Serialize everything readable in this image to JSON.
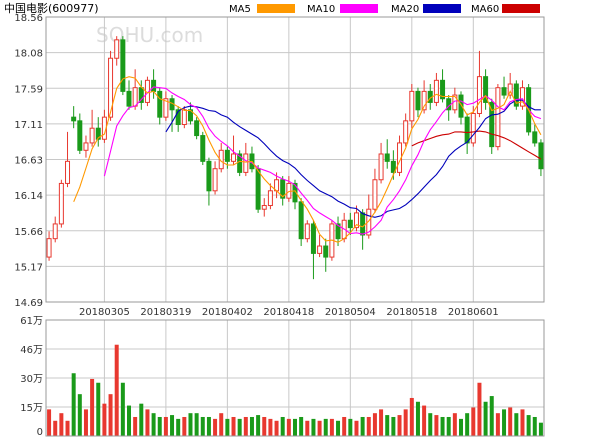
{
  "header": {
    "stock_title": "中国电影(600977)",
    "watermark": "SOHU.com"
  },
  "colors": {
    "up": "#e8382f",
    "down": "#1a9a1a",
    "ma5": "#ff9900",
    "ma10": "#ff00ff",
    "ma20": "#0000bb",
    "ma60": "#cc0000",
    "grid": "#c8c8c8",
    "frame": "#999999"
  },
  "chart_data": [
    {
      "type": "candlestick",
      "title": "中国电影(600977)",
      "ylim": [
        14.69,
        18.56
      ],
      "y_ticks": [
        "18.56",
        "18.08",
        "17.59",
        "17.11",
        "16.63",
        "16.14",
        "15.66",
        "15.17",
        "14.69"
      ],
      "x_tick_labels": [
        "20180305",
        "20180319",
        "20180402",
        "20180418",
        "20180504",
        "20180518",
        "20180601"
      ],
      "x_tick_index": [
        9,
        19,
        29,
        39,
        49,
        59,
        69
      ],
      "legend": [
        {
          "name": "MA5",
          "color": "#ff9900"
        },
        {
          "name": "MA10",
          "color": "#ff00ff"
        },
        {
          "name": "MA20",
          "color": "#0000bb"
        },
        {
          "name": "MA60",
          "color": "#cc0000"
        }
      ],
      "candles": [
        [
          15.3,
          15.55,
          15.65,
          15.25
        ],
        [
          15.55,
          15.75,
          15.85,
          15.5
        ],
        [
          15.75,
          16.3,
          16.35,
          15.7
        ],
        [
          16.3,
          16.6,
          17.0,
          16.25
        ],
        [
          17.2,
          17.15,
          17.35,
          17.05
        ],
        [
          17.15,
          16.75,
          17.25,
          16.7
        ],
        [
          16.75,
          16.85,
          16.95,
          16.65
        ],
        [
          16.85,
          17.05,
          17.3,
          16.8
        ],
        [
          17.05,
          16.9,
          17.2,
          16.8
        ],
        [
          16.9,
          17.2,
          17.3,
          16.85
        ],
        [
          17.2,
          18.0,
          18.1,
          17.15
        ],
        [
          18.0,
          18.25,
          18.3,
          17.9
        ],
        [
          18.25,
          17.55,
          18.3,
          17.5
        ],
        [
          17.55,
          17.35,
          17.7,
          17.3
        ],
        [
          17.35,
          17.6,
          17.85,
          17.3
        ],
        [
          17.6,
          17.4,
          17.7,
          17.3
        ],
        [
          17.4,
          17.7,
          17.75,
          17.35
        ],
        [
          17.7,
          17.55,
          17.85,
          17.45
        ],
        [
          17.55,
          17.2,
          17.6,
          17.1
        ],
        [
          17.2,
          17.45,
          17.55,
          17.15
        ],
        [
          17.45,
          17.3,
          17.5,
          17.0
        ],
        [
          17.3,
          17.1,
          17.35,
          17.0
        ],
        [
          17.1,
          17.3,
          17.35,
          17.05
        ],
        [
          17.3,
          17.15,
          17.4,
          17.1
        ],
        [
          17.15,
          16.95,
          17.2,
          16.9
        ],
        [
          16.95,
          16.6,
          17.0,
          16.55
        ],
        [
          16.6,
          16.2,
          16.65,
          16.0
        ],
        [
          16.2,
          16.5,
          16.6,
          16.15
        ],
        [
          16.5,
          16.75,
          16.85,
          16.45
        ],
        [
          16.75,
          16.6,
          16.8,
          16.5
        ],
        [
          16.6,
          16.7,
          16.95,
          16.55
        ],
        [
          16.7,
          16.45,
          16.75,
          16.4
        ],
        [
          16.45,
          16.7,
          16.85,
          16.4
        ],
        [
          16.7,
          16.5,
          16.8,
          16.45
        ],
        [
          16.5,
          15.95,
          16.55,
          15.9
        ],
        [
          15.95,
          16.0,
          16.1,
          15.85
        ],
        [
          16.0,
          16.2,
          16.3,
          15.95
        ],
        [
          16.2,
          16.35,
          16.45,
          16.1
        ],
        [
          16.35,
          16.1,
          16.4,
          16.0
        ],
        [
          16.1,
          16.3,
          16.4,
          16.05
        ],
        [
          16.3,
          16.05,
          16.35,
          15.95
        ],
        [
          16.05,
          15.55,
          16.1,
          15.45
        ],
        [
          15.55,
          15.75,
          15.8,
          15.5
        ],
        [
          15.75,
          15.35,
          15.8,
          15.0
        ],
        [
          15.35,
          15.45,
          15.6,
          15.3
        ],
        [
          15.45,
          15.3,
          15.55,
          15.1
        ],
        [
          15.3,
          15.75,
          15.8,
          15.25
        ],
        [
          15.75,
          15.55,
          15.85,
          15.45
        ],
        [
          15.55,
          15.8,
          15.9,
          15.5
        ],
        [
          15.8,
          15.7,
          15.9,
          15.6
        ],
        [
          15.7,
          15.9,
          16.0,
          15.65
        ],
        [
          15.9,
          15.6,
          15.95,
          15.4
        ],
        [
          15.6,
          15.95,
          16.15,
          15.55
        ],
        [
          15.95,
          16.35,
          16.5,
          15.9
        ],
        [
          16.35,
          16.7,
          16.85,
          16.3
        ],
        [
          16.7,
          16.6,
          16.9,
          16.5
        ],
        [
          16.6,
          16.45,
          16.75,
          16.35
        ],
        [
          16.45,
          16.85,
          16.95,
          16.4
        ],
        [
          16.85,
          17.15,
          17.25,
          16.8
        ],
        [
          17.15,
          17.55,
          17.65,
          17.05
        ],
        [
          17.55,
          17.3,
          17.6,
          17.2
        ],
        [
          17.3,
          17.55,
          17.7,
          17.25
        ],
        [
          17.55,
          17.4,
          17.65,
          17.3
        ],
        [
          17.4,
          17.7,
          17.8,
          17.35
        ],
        [
          17.7,
          17.45,
          17.85,
          17.4
        ],
        [
          17.45,
          17.3,
          17.5,
          17.15
        ],
        [
          17.3,
          17.5,
          17.6,
          17.25
        ],
        [
          17.5,
          17.2,
          17.55,
          17.1
        ],
        [
          17.2,
          16.85,
          17.25,
          16.7
        ],
        [
          16.85,
          17.25,
          17.35,
          16.8
        ],
        [
          17.25,
          17.75,
          18.1,
          17.2
        ],
        [
          17.75,
          17.4,
          17.85,
          17.3
        ],
        [
          17.4,
          16.8,
          17.45,
          16.7
        ],
        [
          16.8,
          17.6,
          17.65,
          16.75
        ],
        [
          17.6,
          17.5,
          17.75,
          17.45
        ],
        [
          17.5,
          17.65,
          17.8,
          17.45
        ],
        [
          17.65,
          17.35,
          17.7,
          17.3
        ],
        [
          17.35,
          17.6,
          17.7,
          17.3
        ],
        [
          17.6,
          17.0,
          17.65,
          16.95
        ],
        [
          17.0,
          16.85,
          17.1,
          16.8
        ],
        [
          16.85,
          16.5,
          16.9,
          16.4
        ]
      ],
      "ma5": [
        null,
        null,
        null,
        null,
        16.05,
        16.25,
        16.51,
        16.77,
        16.92,
        16.97,
        17.27,
        17.59,
        17.72,
        17.75,
        17.73,
        17.61,
        17.53,
        17.55,
        17.45,
        17.42,
        17.39,
        17.34,
        17.29,
        17.29,
        17.22,
        17.08,
        16.89,
        16.72,
        16.6,
        16.55,
        16.55,
        16.6,
        16.59,
        16.6,
        16.47,
        16.36,
        16.27,
        16.2,
        16.12,
        16.19,
        16.2,
        16.07,
        15.95,
        15.8,
        15.61,
        15.52,
        15.53,
        15.5,
        15.55,
        15.63,
        15.74,
        15.71,
        15.79,
        15.91,
        16.05,
        16.23,
        16.42,
        16.6,
        16.78,
        17.04,
        17.17,
        17.35,
        17.46,
        17.51,
        17.48,
        17.48,
        17.48,
        17.37,
        17.23,
        17.27,
        17.4,
        17.49,
        17.29,
        17.32,
        17.37,
        17.55,
        17.39,
        17.41,
        17.3,
        17.11,
        16.96
      ],
      "ma10": [
        null,
        null,
        null,
        null,
        null,
        null,
        null,
        null,
        null,
        16.4,
        16.74,
        17.08,
        17.22,
        17.33,
        17.35,
        17.44,
        17.53,
        17.61,
        17.6,
        17.59,
        17.53,
        17.48,
        17.44,
        17.37,
        17.33,
        17.21,
        17.05,
        16.94,
        16.87,
        16.81,
        16.73,
        16.67,
        16.61,
        16.58,
        16.51,
        16.48,
        16.45,
        16.4,
        16.36,
        16.33,
        16.28,
        16.17,
        16.07,
        15.96,
        15.9,
        15.85,
        15.8,
        15.73,
        15.68,
        15.62,
        15.63,
        15.61,
        15.64,
        15.71,
        15.8,
        15.98,
        16.08,
        16.2,
        16.35,
        16.54,
        16.69,
        16.88,
        17.03,
        17.14,
        17.26,
        17.35,
        17.42,
        17.42,
        17.37,
        17.39,
        17.44,
        17.49,
        17.43,
        17.34,
        17.3,
        17.41,
        17.44,
        17.45,
        17.3,
        17.21,
        17.18
      ],
      "ma20": [
        null,
        null,
        null,
        null,
        null,
        null,
        null,
        null,
        null,
        null,
        null,
        null,
        null,
        null,
        null,
        null,
        null,
        null,
        null,
        17.0,
        17.13,
        17.28,
        17.33,
        17.35,
        17.34,
        17.32,
        17.29,
        17.28,
        17.23,
        17.2,
        17.13,
        17.07,
        17.02,
        16.97,
        16.92,
        16.84,
        16.75,
        16.67,
        16.61,
        16.57,
        16.51,
        16.42,
        16.34,
        16.27,
        16.2,
        16.16,
        16.12,
        16.06,
        16.02,
        15.97,
        15.96,
        15.89,
        15.86,
        15.84,
        15.86,
        15.92,
        15.94,
        15.96,
        16.01,
        16.08,
        16.16,
        16.25,
        16.34,
        16.42,
        16.53,
        16.67,
        16.75,
        16.81,
        16.86,
        16.96,
        17.06,
        17.18,
        17.23,
        17.24,
        17.28,
        17.38,
        17.43,
        17.43,
        17.34,
        17.3,
        17.3
      ],
      "ma60": [
        null,
        null,
        null,
        null,
        null,
        null,
        null,
        null,
        null,
        null,
        null,
        null,
        null,
        null,
        null,
        null,
        null,
        null,
        null,
        null,
        null,
        null,
        null,
        null,
        null,
        null,
        null,
        null,
        null,
        null,
        null,
        null,
        null,
        null,
        null,
        null,
        null,
        null,
        null,
        null,
        null,
        null,
        null,
        null,
        null,
        null,
        null,
        null,
        null,
        null,
        null,
        null,
        null,
        null,
        null,
        null,
        null,
        null,
        null,
        16.81,
        16.85,
        16.88,
        16.91,
        16.94,
        16.96,
        16.97,
        17.0,
        17.0,
        16.99,
        17.0,
        17.01,
        17.0,
        16.97,
        16.95,
        16.92,
        16.88,
        16.83,
        16.78,
        16.73,
        16.68,
        16.63
      ]
    },
    {
      "type": "bar",
      "title": "",
      "unit": "万",
      "ylim": [
        0,
        61
      ],
      "y_ticks": [
        "61万",
        "46万",
        "30万",
        "15万",
        "0"
      ],
      "volume": [
        14,
        8,
        12,
        8,
        33,
        22,
        14,
        30,
        28,
        17,
        22,
        48,
        28,
        16,
        10,
        17,
        14,
        12,
        10,
        10,
        11,
        9,
        10,
        12,
        12,
        10,
        10,
        9,
        12,
        9,
        10,
        9,
        10,
        10,
        11,
        10,
        9,
        8,
        10,
        9,
        9,
        10,
        8,
        9,
        8,
        9,
        9,
        8,
        10,
        9,
        8,
        10,
        10,
        12,
        14,
        11,
        10,
        11,
        14,
        20,
        18,
        16,
        12,
        11,
        10,
        10,
        12,
        9,
        12,
        15,
        28,
        18,
        21,
        12,
        14,
        15,
        12,
        14,
        11,
        10,
        7
      ]
    }
  ]
}
